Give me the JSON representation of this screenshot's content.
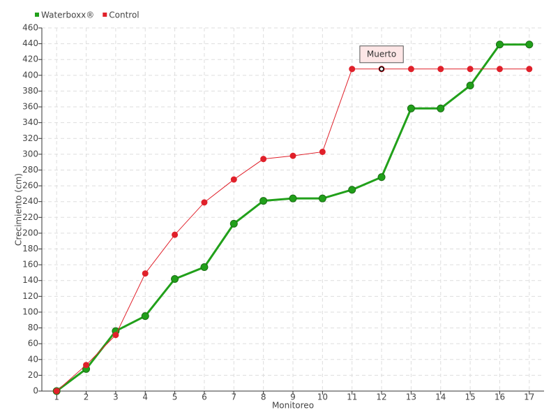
{
  "chart_data": {
    "type": "line",
    "x": [
      1,
      2,
      3,
      4,
      5,
      6,
      7,
      8,
      9,
      10,
      11,
      12,
      13,
      14,
      15,
      16,
      17
    ],
    "xlim": [
      0.5,
      17.5
    ],
    "xticks": [
      1,
      2,
      3,
      4,
      5,
      6,
      7,
      8,
      9,
      10,
      11,
      12,
      13,
      14,
      15,
      16,
      17
    ],
    "ylim": [
      0,
      460
    ],
    "yticks": [
      0,
      20,
      40,
      60,
      80,
      100,
      120,
      140,
      160,
      180,
      200,
      220,
      240,
      260,
      280,
      300,
      320,
      340,
      360,
      380,
      400,
      420,
      440,
      460
    ],
    "xlabel": "Monitoreo",
    "ylabel": "Crecimiento (cm)",
    "grid": true,
    "legend": "top-left",
    "series": [
      {
        "name": "Waterboxx®",
        "color": "#21a01a",
        "values": [
          0,
          28,
          76,
          95,
          142,
          157,
          212,
          241,
          244,
          244,
          255,
          271,
          358,
          358,
          387,
          439,
          439
        ]
      },
      {
        "name": "Control",
        "color": "#e0202a",
        "values": [
          0,
          33,
          71,
          149,
          198,
          239,
          268,
          294,
          298,
          303,
          408,
          408,
          408,
          408,
          408,
          408,
          408
        ]
      }
    ],
    "annotations": [
      {
        "text": "Muerto",
        "x": 12,
        "y": 408
      }
    ]
  }
}
